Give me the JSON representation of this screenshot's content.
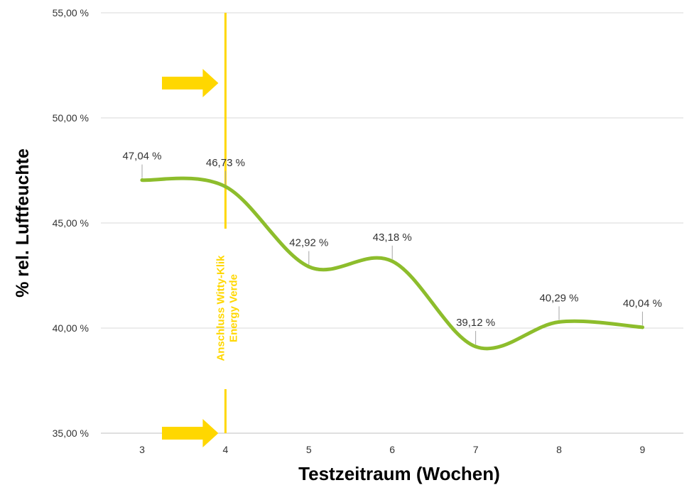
{
  "chart_data": {
    "type": "line",
    "x": [
      3,
      4,
      5,
      6,
      7,
      8,
      9
    ],
    "series": [
      {
        "values": [
          47.04,
          46.73,
          42.92,
          43.18,
          39.12,
          40.29,
          40.04
        ],
        "color": "#8dbd2c"
      }
    ],
    "data_labels": [
      "47,04 %",
      "46,73 %",
      "42,92 %",
      "43,18 %",
      "39,12 %",
      "40,29 %",
      "40,04 %"
    ],
    "x_tick_labels": [
      "3",
      "4",
      "5",
      "6",
      "7",
      "8",
      "9"
    ],
    "y_tick_values": [
      35,
      40,
      45,
      50,
      55
    ],
    "y_tick_labels": [
      "35,00 %",
      "40,00 %",
      "45,00 %",
      "50,00 %",
      "55,00 %"
    ],
    "ylim": [
      35,
      55
    ],
    "xlabel": "Testzeitraum (Wochen)",
    "ylabel": "%  rel. Luftfeuchte",
    "grid": true,
    "annotation": {
      "x": 4,
      "line1": "Anschluss Witty-Klik",
      "line2": "Energy Verde",
      "color": "#ffd700"
    }
  }
}
